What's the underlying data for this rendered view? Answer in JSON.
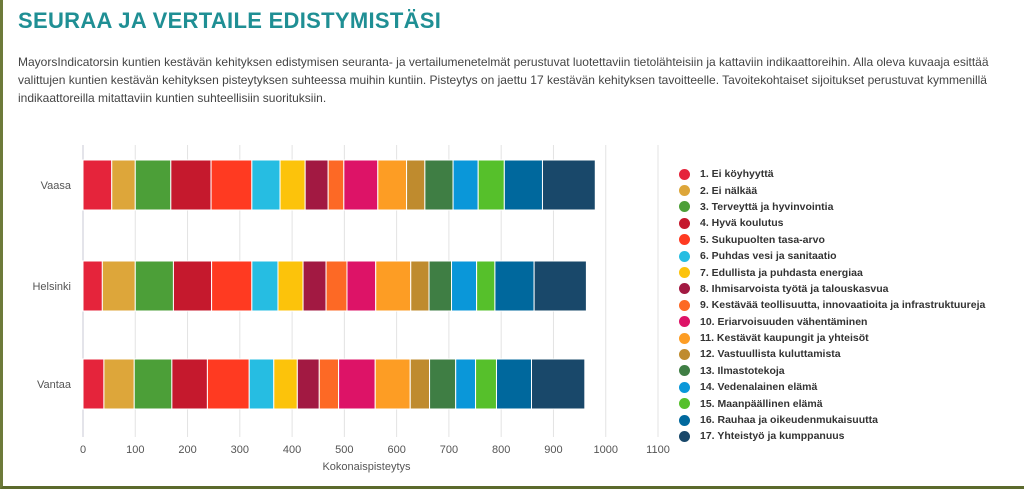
{
  "header": {
    "title": "SEURAA JA VERTAILE EDISTYMISTÄSI",
    "description": "MayorsIndicatorsin kuntien kestävän kehityksen edistymisen seuranta- ja vertailumenetelmät perustuvat luotettaviin tietolähteisiin ja kattaviin indikaattoreihin. Alla oleva kuvaaja esittää valittujen kuntien kestävän kehityksen pisteytyksen suhteessa muihin kuntiin. Pisteytys on jaettu 17 kestävän kehityksen tavoitteelle. Tavoitekohtaiset sijoitukset perustuvat kymmenillä indikaattoreilla mitattaviin kuntien suhteellisiin suorituksiin."
  },
  "chart_data": {
    "type": "bar",
    "orientation": "horizontal",
    "stacked": true,
    "categories": [
      "Vaasa",
      "Helsinki",
      "Vantaa"
    ],
    "xlabel": "Kokonaispisteytys",
    "xlim": [
      0,
      1100
    ],
    "xticks": [
      0,
      100,
      200,
      300,
      400,
      500,
      600,
      700,
      800,
      900,
      1000,
      1100
    ],
    "grid": true,
    "legend_position": "right",
    "series": [
      {
        "name": "1. Ei köyhyyttä",
        "color": "#e5243b",
        "values": [
          55,
          37,
          40
        ]
      },
      {
        "name": "2. Ei nälkää",
        "color": "#dda63a",
        "values": [
          45,
          63,
          58
        ]
      },
      {
        "name": "3. Terveyttä ja hyvinvointia",
        "color": "#4c9f38",
        "values": [
          68,
          73,
          72
        ]
      },
      {
        "name": "4. Hyvä koulutus",
        "color": "#c5192d",
        "values": [
          77,
          73,
          68
        ]
      },
      {
        "name": "5. Sukupuolten tasa-arvo",
        "color": "#ff3a21",
        "values": [
          78,
          77,
          80
        ]
      },
      {
        "name": "6. Puhdas vesi ja sanitaatio",
        "color": "#26bde2",
        "values": [
          54,
          50,
          47
        ]
      },
      {
        "name": "7. Edullista ja puhdasta energiaa",
        "color": "#fcc30b",
        "values": [
          48,
          48,
          45
        ]
      },
      {
        "name": "8. Ihmisarvoista työtä ja talouskasvua",
        "color": "#a21942",
        "values": [
          44,
          44,
          42
        ]
      },
      {
        "name": "9. Kestävää teollisuutta, innovaatioita ja infrastruktuureja",
        "color": "#fd6925",
        "values": [
          30,
          40,
          37
        ]
      },
      {
        "name": "10. Eriarvoisuuden vähentäminen",
        "color": "#dd1367",
        "values": [
          65,
          55,
          70
        ]
      },
      {
        "name": "11. Kestävät kaupungit ja yhteisöt",
        "color": "#fd9d24",
        "values": [
          55,
          67,
          67
        ]
      },
      {
        "name": "12. Vastuullista kuluttamista",
        "color": "#bf8b2e",
        "values": [
          35,
          35,
          37
        ]
      },
      {
        "name": "13. Ilmastotekoja",
        "color": "#3f7e44",
        "values": [
          54,
          43,
          50
        ]
      },
      {
        "name": "14. Vedenalainen elämä",
        "color": "#0a97d9",
        "values": [
          48,
          48,
          38
        ]
      },
      {
        "name": "15. Maanpäällinen elämä",
        "color": "#56c02b",
        "values": [
          50,
          35,
          40
        ]
      },
      {
        "name": "16. Rauhaa ja oikeudenmukaisuutta",
        "color": "#00689d",
        "values": [
          73,
          75,
          67
        ]
      },
      {
        "name": "17. Yhteistyö ja kumppanuus",
        "color": "#19486a",
        "values": [
          101,
          100,
          102
        ]
      }
    ]
  }
}
